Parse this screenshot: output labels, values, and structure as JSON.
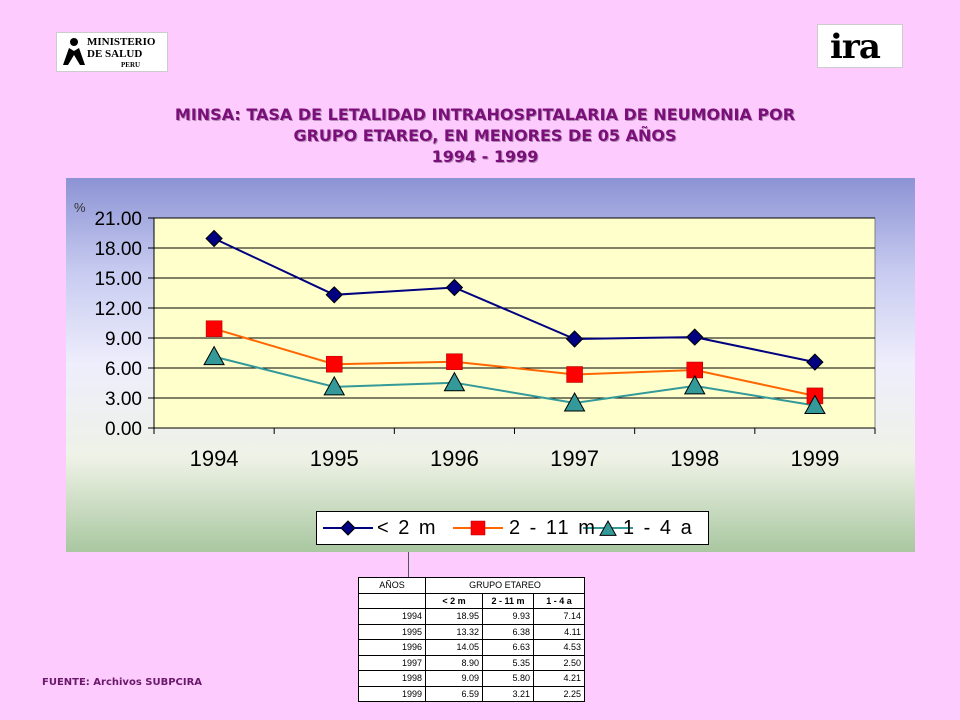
{
  "logos": {
    "left": {
      "line1": "MINISTERIO",
      "line2": "DE SALUD",
      "line3": "PERU"
    },
    "right": {
      "text": "ira"
    }
  },
  "title": {
    "line1": "MINSA: TASA DE LETALIDAD INTRAHOSPITALARIA DE NEUMONIA POR",
    "line2": "GRUPO ETAREO, EN MENORES DE 05 AÑOS",
    "line3": "1994 - 1999"
  },
  "chart_data": {
    "type": "line",
    "ylabel": "%",
    "categories": [
      "1994",
      "1995",
      "1996",
      "1997",
      "1998",
      "1999"
    ],
    "ylim": [
      0,
      21
    ],
    "yticks": [
      "0.00",
      "3.00",
      "6.00",
      "9.00",
      "12.00",
      "15.00",
      "18.00",
      "21.00"
    ],
    "grid": true,
    "legend_position": "bottom",
    "series": [
      {
        "name": "< 2 m",
        "values": [
          18.95,
          13.32,
          14.05,
          8.9,
          9.09,
          6.59
        ],
        "color": "#000080",
        "marker": "diamond",
        "marker_color": "#000080"
      },
      {
        "name": "2 - 11 m",
        "values": [
          9.93,
          6.38,
          6.63,
          5.35,
          5.8,
          3.21
        ],
        "color": "#ff6600",
        "marker": "square",
        "marker_color": "#ff0000"
      },
      {
        "name": "1 - 4 a",
        "values": [
          7.14,
          4.11,
          4.53,
          2.5,
          4.21,
          2.25
        ],
        "color": "#339999",
        "marker": "triangle",
        "marker_color": "#339999"
      }
    ],
    "plot_bg": "#ffffcc"
  },
  "table": {
    "header_years": "AÑOS",
    "header_group": "GRUPO ETAREO",
    "subheaders": [
      "< 2 m",
      "2 - 11 m",
      "1 - 4 a"
    ],
    "rows": [
      [
        "1994",
        "18.95",
        "9.93",
        "7.14"
      ],
      [
        "1995",
        "13.32",
        "6.38",
        "4.11"
      ],
      [
        "1996",
        "14.05",
        "6.63",
        "4.53"
      ],
      [
        "1997",
        "8.90",
        "5.35",
        "2.50"
      ],
      [
        "1998",
        "9.09",
        "5.80",
        "4.21"
      ],
      [
        "1999",
        "6.59",
        "3.21",
        "2.25"
      ]
    ]
  },
  "source": "FUENTE: Archivos SUBPCIRA"
}
